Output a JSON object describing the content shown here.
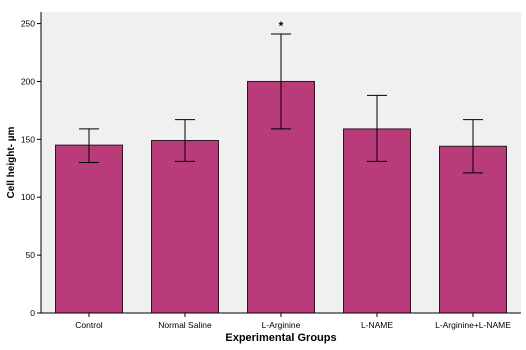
{
  "chart_data": {
    "type": "bar",
    "title": "",
    "xlabel": "Experimental Groups",
    "ylabel": "Cell height- µm",
    "categories": [
      "Control",
      "Normal Saline",
      "L-Arginine",
      "L-NAME",
      "L-Arginine+L-NAME"
    ],
    "values": [
      145,
      149,
      200,
      159,
      144
    ],
    "error_low": [
      130,
      131,
      159,
      131,
      121
    ],
    "error_high": [
      159,
      167,
      241,
      188,
      167
    ],
    "annotations": [
      {
        "category": "L-Arginine",
        "text": "*"
      }
    ],
    "ylim": [
      0,
      260
    ],
    "yticks": [
      0,
      50,
      100,
      150,
      200,
      250
    ],
    "grid": false,
    "colors": {
      "bar_fill": "#b93b7a",
      "bar_stroke": "#2b1a23",
      "plot_background": "#f0f0f0",
      "axis": "#000000"
    }
  }
}
